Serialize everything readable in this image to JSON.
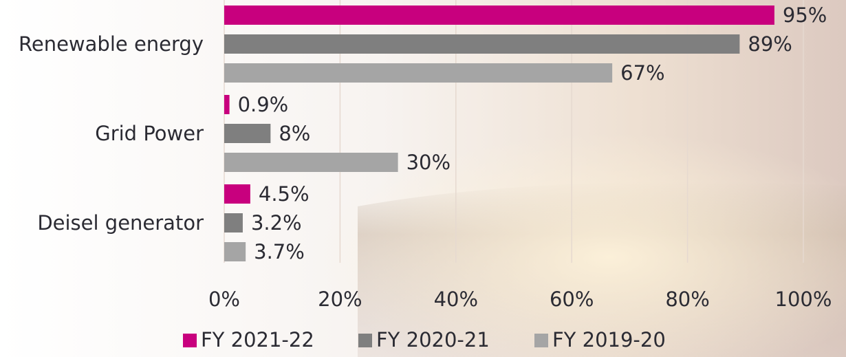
{
  "chart_data": {
    "type": "bar",
    "orientation": "horizontal",
    "categories": [
      "Renewable energy",
      "Grid Power",
      "Deisel generator"
    ],
    "series": [
      {
        "name": "FY 2021-22",
        "color": "#c8007e",
        "values": [
          95,
          0.9,
          4.5
        ],
        "value_labels": [
          "95%",
          "0.9%",
          "4.5%"
        ]
      },
      {
        "name": "FY 2020-21",
        "color": "#7f7f7f",
        "values": [
          89,
          8,
          3.2
        ],
        "value_labels": [
          "89%",
          "8%",
          "3.2%"
        ]
      },
      {
        "name": "FY 2019-20",
        "color": "#a5a5a5",
        "values": [
          67,
          30,
          3.7
        ],
        "value_labels": [
          "67%",
          "30%",
          "3.7%"
        ]
      }
    ],
    "xlim": [
      0,
      100
    ],
    "xticks": [
      {
        "value": 0,
        "label": "0%"
      },
      {
        "value": 20,
        "label": "20%"
      },
      {
        "value": 40,
        "label": "40%"
      },
      {
        "value": 60,
        "label": "60%"
      },
      {
        "value": 80,
        "label": "80%"
      },
      {
        "value": 100,
        "label": "100%"
      }
    ],
    "grid": true,
    "legend": "bottom"
  }
}
